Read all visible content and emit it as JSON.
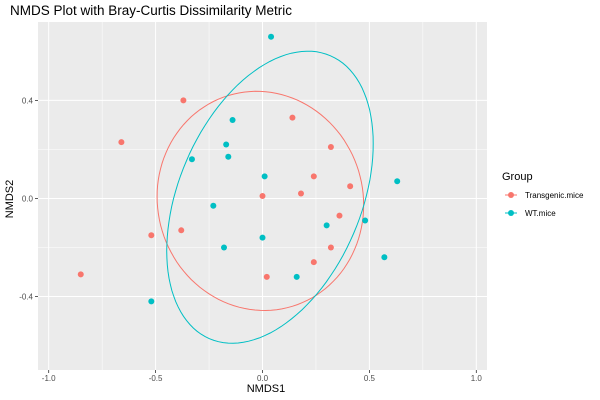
{
  "chart_data": {
    "type": "scatter",
    "title": "NMDS Plot with Bray-Curtis Dissimilarity Metric",
    "xlabel": "NMDS1",
    "ylabel": "NMDS2",
    "xlim": [
      -1.05,
      1.05
    ],
    "ylim": [
      -0.7,
      0.72
    ],
    "x_ticks": [
      -1.0,
      -0.5,
      0.0,
      0.5,
      1.0
    ],
    "x_tick_labels": [
      "-1.0",
      "-0.5",
      "0.0",
      "0.5",
      "1.0"
    ],
    "y_ticks": [
      -0.4,
      0.0,
      0.4
    ],
    "y_tick_labels": [
      "-0.4",
      "0.0",
      "0.4"
    ],
    "grid": true,
    "legend": {
      "title": "Group",
      "position": "right"
    },
    "series": [
      {
        "name": "Transgenic.mice",
        "color": "#F8766D",
        "points": [
          {
            "x": -0.37,
            "y": 0.4
          },
          {
            "x": -0.66,
            "y": 0.23
          },
          {
            "x": 0.14,
            "y": 0.33
          },
          {
            "x": 0.32,
            "y": 0.21
          },
          {
            "x": 0.24,
            "y": 0.09
          },
          {
            "x": 0.41,
            "y": 0.05
          },
          {
            "x": 0.18,
            "y": 0.02
          },
          {
            "x": 0.0,
            "y": 0.01
          },
          {
            "x": 0.36,
            "y": -0.07
          },
          {
            "x": -0.38,
            "y": -0.13
          },
          {
            "x": -0.52,
            "y": -0.15
          },
          {
            "x": 0.32,
            "y": -0.2
          },
          {
            "x": 0.24,
            "y": -0.26
          },
          {
            "x": 0.02,
            "y": -0.32
          },
          {
            "x": -0.85,
            "y": -0.31
          }
        ],
        "ellipse": {
          "cx": -0.01,
          "cy": -0.01,
          "rx": 0.485,
          "ry": 0.445,
          "angle": -13
        }
      },
      {
        "name": "WT.mice",
        "color": "#00BFC4",
        "points": [
          {
            "x": 0.04,
            "y": 0.66
          },
          {
            "x": -0.14,
            "y": 0.32
          },
          {
            "x": -0.17,
            "y": 0.22
          },
          {
            "x": -0.33,
            "y": 0.16
          },
          {
            "x": -0.16,
            "y": 0.17
          },
          {
            "x": 0.01,
            "y": 0.09
          },
          {
            "x": 0.63,
            "y": 0.07
          },
          {
            "x": -0.23,
            "y": -0.03
          },
          {
            "x": 0.3,
            "y": -0.11
          },
          {
            "x": 0.48,
            "y": -0.09
          },
          {
            "x": 0.0,
            "y": -0.16
          },
          {
            "x": -0.18,
            "y": -0.2
          },
          {
            "x": 0.57,
            "y": -0.24
          },
          {
            "x": 0.16,
            "y": -0.32
          },
          {
            "x": -0.52,
            "y": -0.42
          }
        ],
        "ellipse": {
          "cx": 0.035,
          "cy": 0.005,
          "rx": 0.415,
          "ry": 0.645,
          "angle": -30
        }
      }
    ]
  }
}
